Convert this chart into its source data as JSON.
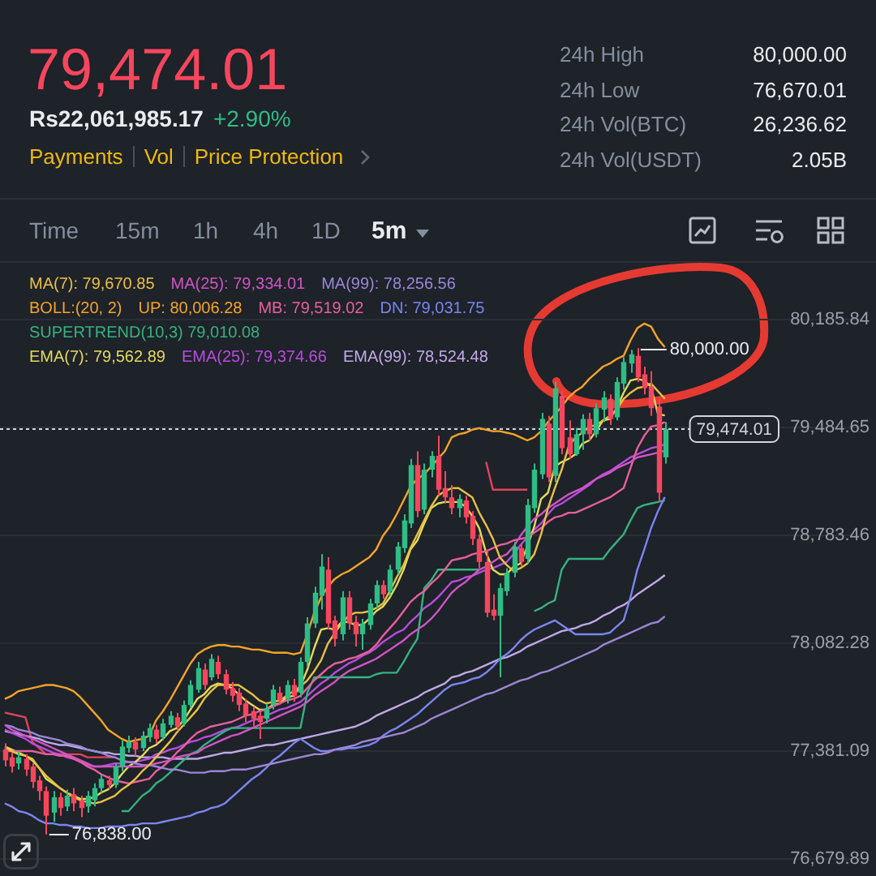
{
  "chart_data": {
    "type": "candlestick",
    "title": "79,474.01",
    "annotations": [
      "Rs22,061,985.17",
      "+2.90%",
      "Payments",
      "Vol",
      "Price Protection",
      "24h High",
      "80,000.00",
      "24h Low",
      "76,670.01",
      "24h Vol(BTC)",
      "26,236.62",
      "24h Vol(USDT)",
      "2.05B",
      "Time",
      "15m",
      "1h",
      "4h",
      "1D",
      "5m",
      "BOLL:(20, 2)",
      "80,000.00",
      "76,838.00",
      "79,474.01"
    ],
    "categories": [
      null,
      null,
      null,
      null,
      null,
      null,
      null,
      null,
      null,
      null,
      null,
      null,
      null,
      null,
      null,
      null,
      null,
      null,
      null,
      null,
      null,
      null,
      null,
      null,
      null,
      null,
      null,
      null,
      null,
      null,
      null,
      null,
      null,
      null,
      null,
      null,
      null,
      null,
      null,
      null,
      null,
      null,
      null,
      null,
      null,
      null,
      null,
      null,
      null,
      null,
      null,
      null,
      null,
      null,
      null,
      null,
      null,
      null,
      null,
      null,
      null,
      null,
      null,
      null,
      null,
      null,
      null,
      null,
      null,
      null,
      null,
      null,
      null,
      null,
      null,
      null,
      null,
      null,
      null,
      null,
      null,
      null,
      null,
      null,
      null,
      null,
      null,
      null,
      null,
      null,
      null,
      null,
      null,
      null,
      null,
      null,
      null
    ],
    "ohlc": [
      [
        77390,
        77430,
        77280,
        77320
      ],
      [
        77340,
        77370,
        77240,
        77280
      ],
      [
        77300,
        77380,
        77260,
        77340
      ],
      [
        77330,
        77360,
        77220,
        77260
      ],
      [
        77280,
        77300,
        77140,
        77180
      ],
      [
        77190,
        77220,
        77060,
        77120
      ],
      [
        77120,
        77150,
        76838,
        76960
      ],
      [
        76980,
        77120,
        76920,
        77080
      ],
      [
        77080,
        77110,
        76960,
        77010
      ],
      [
        77020,
        77130,
        76990,
        77090
      ],
      [
        77100,
        77140,
        76990,
        77040
      ],
      [
        77060,
        77090,
        76950,
        77010
      ],
      [
        77020,
        77120,
        76980,
        77090
      ],
      [
        77060,
        77170,
        77020,
        77140
      ],
      [
        77140,
        77230,
        77110,
        77200
      ],
      [
        77190,
        77220,
        77130,
        77160
      ],
      [
        77160,
        77300,
        77140,
        77280
      ],
      [
        77280,
        77450,
        77250,
        77410
      ],
      [
        77400,
        77480,
        77370,
        77440
      ],
      [
        77440,
        77470,
        77350,
        77390
      ],
      [
        77400,
        77510,
        77380,
        77480
      ],
      [
        77470,
        77560,
        77440,
        77530
      ],
      [
        77520,
        77550,
        77430,
        77460
      ],
      [
        77470,
        77590,
        77450,
        77560
      ],
      [
        77550,
        77640,
        77530,
        77610
      ],
      [
        77600,
        77630,
        77510,
        77540
      ],
      [
        77560,
        77710,
        77540,
        77680
      ],
      [
        77680,
        77840,
        77660,
        77810
      ],
      [
        77780,
        77960,
        77760,
        77920
      ],
      [
        77910,
        77950,
        77780,
        77810
      ],
      [
        77860,
        78010,
        77840,
        77980
      ],
      [
        77960,
        78000,
        77850,
        77880
      ],
      [
        77880,
        77910,
        77750,
        77780
      ],
      [
        77790,
        77830,
        77700,
        77740
      ],
      [
        77760,
        77790,
        77640,
        77680
      ],
      [
        77690,
        77720,
        77570,
        77610
      ],
      [
        77640,
        77670,
        77540,
        77590
      ],
      [
        77610,
        77640,
        77460,
        77570
      ],
      [
        77590,
        77690,
        77560,
        77660
      ],
      [
        77680,
        77810,
        77650,
        77780
      ],
      [
        77760,
        77800,
        77680,
        77710
      ],
      [
        77720,
        77840,
        77690,
        77810
      ],
      [
        77810,
        77850,
        77700,
        77740
      ],
      [
        77760,
        77990,
        77730,
        77960
      ],
      [
        77960,
        78250,
        77930,
        78210
      ],
      [
        78210,
        78450,
        78180,
        78410
      ],
      [
        78390,
        78660,
        78300,
        78580
      ],
      [
        78560,
        78640,
        78170,
        78210
      ],
      [
        78230,
        78260,
        78060,
        78110
      ],
      [
        78140,
        78420,
        78100,
        78380
      ],
      [
        78380,
        78420,
        78170,
        78210
      ],
      [
        78220,
        78260,
        78060,
        78140
      ],
      [
        78140,
        78240,
        78040,
        78210
      ],
      [
        78200,
        78370,
        78170,
        78340
      ],
      [
        78340,
        78490,
        78310,
        78460
      ],
      [
        78460,
        78490,
        78370,
        78400
      ],
      [
        78420,
        78590,
        78390,
        78560
      ],
      [
        78560,
        78740,
        78530,
        78710
      ],
      [
        78700,
        78920,
        78670,
        78880
      ],
      [
        78860,
        79280,
        78830,
        79240
      ],
      [
        79240,
        79330,
        78900,
        78940
      ],
      [
        78950,
        79250,
        78920,
        79210
      ],
      [
        79210,
        79330,
        79160,
        79300
      ],
      [
        79300,
        79430,
        79040,
        79080
      ],
      [
        79090,
        79200,
        78990,
        79030
      ],
      [
        79030,
        79110,
        78920,
        78960
      ],
      [
        78960,
        79050,
        78900,
        79020
      ],
      [
        79010,
        79040,
        78860,
        78900
      ],
      [
        78910,
        78940,
        78720,
        78760
      ],
      [
        78760,
        78790,
        78570,
        78610
      ],
      [
        78610,
        78690,
        78250,
        78280
      ],
      [
        78300,
        78400,
        78230,
        78260
      ],
      [
        78260,
        78470,
        77860,
        78440
      ],
      [
        78420,
        78570,
        78390,
        78540
      ],
      [
        78540,
        78740,
        78510,
        78710
      ],
      [
        78700,
        78730,
        78580,
        78610
      ],
      [
        78630,
        79020,
        78600,
        78980
      ],
      [
        78960,
        79250,
        78930,
        79210
      ],
      [
        79180,
        79580,
        79150,
        79540
      ],
      [
        79510,
        79560,
        79130,
        79160
      ],
      [
        79170,
        79780,
        79130,
        79740
      ],
      [
        79690,
        79720,
        79310,
        79350
      ],
      [
        79420,
        79530,
        79280,
        79310
      ],
      [
        79310,
        79480,
        79300,
        79440
      ],
      [
        79440,
        79570,
        79340,
        79540
      ],
      [
        79540,
        79580,
        79400,
        79440
      ],
      [
        79440,
        79640,
        79420,
        79610
      ],
      [
        79600,
        79720,
        79520,
        79680
      ],
      [
        79670,
        79700,
        79500,
        79540
      ],
      [
        79550,
        79810,
        79530,
        79780
      ],
      [
        79770,
        79940,
        79730,
        79910
      ],
      [
        79900,
        79990,
        79840,
        79960
      ],
      [
        79950,
        80000,
        79780,
        79810
      ],
      [
        79830,
        79880,
        79700,
        79740
      ],
      [
        79750,
        79850,
        79560,
        79610
      ],
      [
        79620,
        79670,
        79000,
        79060
      ],
      [
        79290,
        79520,
        79250,
        79474.01
      ]
    ],
    "colors": [
      "#f6465d",
      "#f6465d",
      "#2ebd85",
      "#f6465d",
      "#f6465d",
      "#f6465d",
      "#f6465d",
      "#2ebd85",
      "#f6465d",
      "#2ebd85",
      "#f6465d",
      "#f6465d",
      "#2ebd85",
      "#2ebd85",
      "#2ebd85",
      "#f6465d",
      "#2ebd85",
      "#2ebd85",
      "#2ebd85",
      "#f6465d",
      "#2ebd85",
      "#2ebd85",
      "#f6465d",
      "#2ebd85",
      "#2ebd85",
      "#f6465d",
      "#2ebd85",
      "#2ebd85",
      "#2ebd85",
      "#f6465d",
      "#2ebd85",
      "#f6465d",
      "#f6465d",
      "#f6465d",
      "#f6465d",
      "#f6465d",
      "#f6465d",
      "#f6465d",
      "#2ebd85",
      "#2ebd85",
      "#f6465d",
      "#2ebd85",
      "#f6465d",
      "#2ebd85",
      "#2ebd85",
      "#2ebd85",
      "#2ebd85",
      "#f6465d",
      "#f6465d",
      "#2ebd85",
      "#f6465d",
      "#f6465d",
      "#2ebd85",
      "#2ebd85",
      "#2ebd85",
      "#f6465d",
      "#2ebd85",
      "#2ebd85",
      "#2ebd85",
      "#2ebd85",
      "#f6465d",
      "#2ebd85",
      "#2ebd85",
      "#f6465d",
      "#f6465d",
      "#f6465d",
      "#2ebd85",
      "#f6465d",
      "#f6465d",
      "#f6465d",
      "#f6465d",
      "#f6465d",
      "#2ebd85",
      "#2ebd85",
      "#2ebd85",
      "#f6465d",
      "#2ebd85",
      "#2ebd85",
      "#2ebd85",
      "#f6465d",
      "#2ebd85",
      "#f6465d",
      "#f6465d",
      "#2ebd85",
      "#2ebd85",
      "#f6465d",
      "#2ebd85",
      "#2ebd85",
      "#f6465d",
      "#2ebd85",
      "#2ebd85",
      "#2ebd85",
      "#f6465d",
      "#f6465d",
      "#f6465d",
      "#f6465d",
      "#2ebd85"
    ],
    "series": [
      {
        "type": "line",
        "name": "MA(7): 79,670.85",
        "color": "#eac045",
        "values": [
          77400,
          77380,
          77360,
          77350,
          77330,
          77270,
          77220,
          77180,
          77140,
          77110,
          77080,
          77060,
          77050,
          77040,
          77050,
          77070,
          77090,
          77130,
          77160,
          77200,
          77250,
          77290,
          77340,
          77390,
          77440,
          77500,
          77550,
          77600,
          77650,
          77720,
          77770,
          77810,
          77810,
          77810,
          77810,
          77780,
          77750,
          77710,
          77690,
          77700,
          77710,
          77740,
          77770,
          77800,
          77840,
          77900,
          77970,
          78080,
          78150,
          78210,
          78260,
          78280,
          78280,
          78290,
          78310,
          78340,
          78420,
          78510,
          78590,
          78700,
          78790,
          78880,
          78970,
          79040,
          79070,
          79090,
          79090,
          79060,
          79030,
          78930,
          78850,
          78760,
          78640,
          78590,
          78550,
          78570,
          78600,
          78660,
          78790,
          78960,
          79090,
          79210,
          79360,
          79420,
          79450,
          79490,
          79500,
          79530,
          79560,
          79600,
          79670,
          79710,
          79740,
          79750,
          79770,
          79720,
          79670.85
        ]
      },
      {
        "type": "line",
        "name": "MA(25): 79,334.01",
        "color": "#d055c4",
        "values": [
          77550,
          77520,
          77500,
          77480,
          77460,
          77440,
          77420,
          77400,
          77380,
          77360,
          77340,
          77320,
          77300,
          77280,
          77280,
          77280,
          77280,
          77280,
          77280,
          77280,
          77280,
          77290,
          77300,
          77310,
          77320,
          77340,
          77350,
          77360,
          77370,
          77400,
          77420,
          77440,
          77460,
          77480,
          77490,
          77510,
          77530,
          77550,
          77570,
          77590,
          77610,
          77630,
          77650,
          77670,
          77700,
          77740,
          77770,
          77800,
          77830,
          77870,
          77900,
          77920,
          77940,
          77960,
          77980,
          78010,
          78040,
          78070,
          78100,
          78140,
          78170,
          78200,
          78240,
          78290,
          78350,
          78410,
          78450,
          78480,
          78520,
          78560,
          78580,
          78610,
          78640,
          78660,
          78710,
          78780,
          78840,
          78890,
          78920,
          78960,
          78990,
          79020,
          79050,
          79070,
          79090,
          79120,
          79150,
          79170,
          79190,
          79220,
          79240,
          79260,
          79290,
          79300,
          79310,
          79320,
          79334.01
        ]
      },
      {
        "type": "line",
        "name": "MA(99): 78,256.56",
        "color": "#9b86d6",
        "values": [
          77550,
          77540,
          77520,
          77510,
          77500,
          77480,
          77470,
          77460,
          77450,
          77430,
          77420,
          77410,
          77390,
          77380,
          77370,
          77350,
          77340,
          77320,
          77310,
          77300,
          77290,
          77290,
          77280,
          77270,
          77260,
          77260,
          77250,
          77240,
          77240,
          77240,
          77250,
          77250,
          77250,
          77260,
          77260,
          77260,
          77270,
          77280,
          77290,
          77300,
          77310,
          77320,
          77330,
          77340,
          77350,
          77360,
          77360,
          77370,
          77390,
          77400,
          77410,
          77420,
          77440,
          77450,
          77460,
          77470,
          77480,
          77490,
          77500,
          77520,
          77540,
          77560,
          77590,
          77610,
          77630,
          77650,
          77670,
          77690,
          77710,
          77730,
          77750,
          77760,
          77780,
          77800,
          77820,
          77840,
          77850,
          77870,
          77890,
          77900,
          77920,
          77940,
          77960,
          77980,
          78000,
          78020,
          78040,
          78070,
          78090,
          78110,
          78130,
          78150,
          78170,
          78190,
          78210,
          78220,
          78256.56
        ]
      },
      {
        "type": "line",
        "name": "UP: 80,006.28",
        "color": "#f5a524",
        "values": [
          77720,
          77740,
          77770,
          77780,
          77790,
          77800,
          77810,
          77810,
          77800,
          77790,
          77770,
          77730,
          77680,
          77630,
          77580,
          77520,
          77490,
          77460,
          77440,
          77450,
          77460,
          77480,
          77580,
          77640,
          77710,
          77790,
          77870,
          77950,
          78010,
          78040,
          78060,
          78070,
          78070,
          78060,
          78060,
          78050,
          78040,
          78040,
          78030,
          78020,
          78020,
          78020,
          78010,
          78020,
          78140,
          78280,
          78380,
          78450,
          78500,
          78530,
          78550,
          78580,
          78610,
          78640,
          78690,
          78780,
          78840,
          78920,
          79010,
          79100,
          79150,
          79180,
          79230,
          79280,
          79330,
          79420,
          79440,
          79450,
          79470,
          79480,
          79470,
          79460,
          79460,
          79450,
          79440,
          79420,
          79400,
          79420,
          79460,
          79520,
          79570,
          79620,
          79680,
          79720,
          79750,
          79800,
          79840,
          79880,
          79900,
          79930,
          79950,
          80050,
          80130,
          80160,
          80140,
          80060,
          80006.28
        ]
      },
      {
        "type": "line",
        "name": "MB: 79,519.02",
        "color": "#e8609c",
        "values": [
          77380,
          77380,
          77380,
          77380,
          77380,
          77370,
          77360,
          77360,
          77350,
          77350,
          77330,
          77310,
          77280,
          77260,
          77230,
          77210,
          77190,
          77180,
          77170,
          77180,
          77190,
          77200,
          77250,
          77280,
          77320,
          77370,
          77410,
          77460,
          77500,
          77520,
          77540,
          77550,
          77560,
          77570,
          77590,
          77610,
          77620,
          77640,
          77650,
          77670,
          77690,
          77710,
          77720,
          77740,
          77790,
          77840,
          77880,
          77920,
          77950,
          77960,
          77980,
          77990,
          78010,
          78030,
          78070,
          78130,
          78180,
          78230,
          78290,
          78350,
          78390,
          78420,
          78470,
          78510,
          78560,
          78620,
          78630,
          78640,
          78660,
          78670,
          78680,
          78700,
          78720,
          78730,
          78750,
          78760,
          78770,
          78800,
          78830,
          78870,
          78900,
          78910,
          78930,
          78930,
          78950,
          78970,
          78990,
          79010,
          79030,
          79060,
          79090,
          79220,
          79350,
          79430,
          79490,
          79500,
          79519.02
        ]
      },
      {
        "type": "line",
        "name": "DN: 79,031.75",
        "color": "#7b86f0",
        "values": [
          77040,
          77020,
          76990,
          76980,
          76960,
          76930,
          76910,
          76910,
          76900,
          76900,
          76890,
          76890,
          76880,
          76880,
          76880,
          76890,
          76890,
          76890,
          76900,
          76900,
          76910,
          76910,
          76910,
          76920,
          76930,
          76940,
          76950,
          76960,
          76980,
          76990,
          77010,
          77020,
          77040,
          77080,
          77120,
          77160,
          77200,
          77230,
          77270,
          77320,
          77350,
          77390,
          77430,
          77460,
          77430,
          77400,
          77380,
          77380,
          77390,
          77390,
          77400,
          77400,
          77410,
          77420,
          77440,
          77480,
          77510,
          77530,
          77560,
          77590,
          77620,
          77660,
          77700,
          77740,
          77780,
          77810,
          77820,
          77830,
          77850,
          77860,
          77890,
          77930,
          77980,
          78010,
          78050,
          78100,
          78140,
          78170,
          78190,
          78210,
          78230,
          78200,
          78170,
          78140,
          78140,
          78140,
          78140,
          78140,
          78150,
          78190,
          78230,
          78380,
          78560,
          78690,
          78830,
          78940,
          79031.75
        ]
      },
      {
        "type": "line",
        "name": "SUPERTREND(10,3) 79,010.08",
        "color": "#34b37e",
        "values": [
          null,
          null,
          null,
          null,
          null,
          null,
          null,
          null,
          null,
          null,
          null,
          null,
          null,
          null,
          null,
          null,
          null,
          76990,
          76990,
          77040,
          77090,
          77120,
          77170,
          77200,
          77240,
          77280,
          77320,
          77360,
          77380,
          77420,
          77450,
          77480,
          77510,
          77530,
          77530,
          77530,
          77530,
          77530,
          77530,
          77530,
          77530,
          77530,
          77530,
          77530,
          77760,
          77860,
          77860,
          77860,
          77860,
          77860,
          77860,
          77860,
          77860,
          77860,
          77880,
          77890,
          77890,
          77890,
          77960,
          78040,
          78110,
          78440,
          78490,
          78560,
          78560,
          78560,
          78560,
          78560,
          78560,
          78560,
          null,
          null,
          null,
          null,
          null,
          null,
          null,
          78290,
          78310,
          78340,
          78360,
          78560,
          78630,
          78630,
          78630,
          78630,
          78630,
          78630,
          78690,
          78740,
          78790,
          78880,
          78960,
          78980,
          78990,
          79000,
          79010.08
        ]
      },
      {
        "type": "line",
        "name": "EMA(7): 79,562.89",
        "color": "#e3db5a",
        "values": [
          77410,
          77390,
          77370,
          77350,
          77320,
          77270,
          77200,
          77170,
          77140,
          77110,
          77090,
          77070,
          77070,
          77080,
          77110,
          77130,
          77170,
          77230,
          77280,
          77310,
          77350,
          77400,
          77420,
          77460,
          77510,
          77530,
          77580,
          77650,
          77720,
          77750,
          77800,
          77820,
          77810,
          77790,
          77750,
          77710,
          77680,
          77650,
          77650,
          77680,
          77690,
          77730,
          77740,
          77800,
          77910,
          78050,
          78170,
          78180,
          78170,
          78220,
          78220,
          78200,
          78200,
          78240,
          78290,
          78320,
          78380,
          78460,
          78560,
          78690,
          78750,
          78860,
          78960,
          78990,
          79000,
          79000,
          79000,
          78970,
          78910,
          78830,
          78670,
          78560,
          78530,
          78530,
          78580,
          78600,
          78710,
          78840,
          79020,
          79060,
          79230,
          79260,
          79280,
          79310,
          79380,
          79400,
          79460,
          79530,
          79540,
          79610,
          79710,
          79790,
          79800,
          79790,
          79750,
          79570,
          79562.89
        ]
      },
      {
        "type": "line",
        "name": "EMA(25): 79,374.66",
        "color": "#b84ce0",
        "values": [
          77520,
          77500,
          77480,
          77460,
          77430,
          77410,
          77390,
          77370,
          77360,
          77340,
          77330,
          77310,
          77290,
          77280,
          77280,
          77290,
          77300,
          77300,
          77310,
          77310,
          77320,
          77330,
          77360,
          77370,
          77390,
          77400,
          77420,
          77440,
          77450,
          77470,
          77480,
          77500,
          77520,
          77530,
          77540,
          77560,
          77580,
          77590,
          77610,
          77630,
          77650,
          77660,
          77680,
          77700,
          77740,
          77780,
          77820,
          77850,
          77890,
          77920,
          77950,
          77970,
          78000,
          78020,
          78050,
          78090,
          78120,
          78150,
          78170,
          78220,
          78260,
          78310,
          78340,
          78380,
          78430,
          78480,
          78490,
          78510,
          78520,
          78540,
          78560,
          78570,
          78590,
          78610,
          78660,
          78720,
          78770,
          78820,
          78860,
          78920,
          78970,
          78990,
          79020,
          79050,
          79080,
          79110,
          79150,
          79180,
          79200,
          79230,
          79260,
          79290,
          79310,
          79330,
          79350,
          79360,
          79374.66
        ]
      },
      {
        "type": "line",
        "name": "EMA(99): 78,524.48",
        "color": "#c0a8e8",
        "values": [
          77510,
          77500,
          77490,
          77480,
          77470,
          77460,
          77440,
          77430,
          77420,
          77420,
          77410,
          77400,
          77390,
          77380,
          77370,
          77370,
          77360,
          77360,
          77350,
          77350,
          77340,
          77340,
          77340,
          77340,
          77330,
          77330,
          77330,
          77330,
          77330,
          77340,
          77350,
          77360,
          77370,
          77370,
          77380,
          77390,
          77400,
          77410,
          77420,
          77420,
          77430,
          77440,
          77450,
          77460,
          77470,
          77480,
          77490,
          77500,
          77510,
          77520,
          77530,
          77540,
          77560,
          77580,
          77610,
          77630,
          77650,
          77670,
          77690,
          77710,
          77730,
          77760,
          77780,
          77800,
          77820,
          77860,
          77870,
          77890,
          77900,
          77920,
          77940,
          77960,
          77980,
          77990,
          78010,
          78030,
          78060,
          78080,
          78100,
          78120,
          78140,
          78160,
          78170,
          78180,
          78200,
          78210,
          78230,
          78260,
          78280,
          78310,
          78330,
          78360,
          78400,
          78430,
          78460,
          78490,
          78524.48
        ]
      },
      {
        "type": "line",
        "color": "#e0435a",
        "values": [
          77630,
          77620,
          77610,
          77600,
          77440,
          77400,
          77360,
          77360,
          77360,
          77360,
          77360,
          77360,
          77340,
          77340,
          77340,
          77340,
          77340,
          null,
          null,
          null,
          null,
          null,
          null,
          null,
          null,
          null,
          null,
          null,
          null,
          null,
          null,
          null,
          null,
          null,
          null,
          null,
          null,
          null,
          null,
          null,
          null,
          null,
          null,
          null,
          null,
          null,
          null,
          null,
          null,
          null,
          null,
          null,
          null,
          null,
          null,
          null,
          null,
          null,
          null,
          null,
          null,
          null,
          null,
          null,
          null,
          null,
          null,
          null,
          null,
          null,
          79260,
          79080,
          79080,
          79080,
          79080,
          79080,
          79080,
          null,
          null,
          null,
          null,
          null,
          null,
          null,
          null,
          null,
          null,
          null,
          null,
          null,
          null,
          null,
          null,
          null,
          null,
          null,
          null
        ]
      }
    ],
    "ylim": [
      76679.89,
      80185.84
    ],
    "yticks": [
      {
        "value": 80185.84,
        "label": "80,185.84"
      },
      {
        "value": 79484.65,
        "label": "79,484.65"
      },
      {
        "value": 78783.46,
        "label": "78,783.46"
      },
      {
        "value": 78082.28,
        "label": "78,082.28"
      },
      {
        "value": 77381.09,
        "label": "77,381.09"
      },
      {
        "value": 76679.89,
        "label": "76,679.89"
      }
    ],
    "tick_labels": "y",
    "grid": "y",
    "legend": "top left",
    "ref_lines": [
      {
        "axis": "y",
        "value": 79474.01,
        "color": "#d3d6db",
        "line_style": "dotted"
      }
    ]
  }
}
